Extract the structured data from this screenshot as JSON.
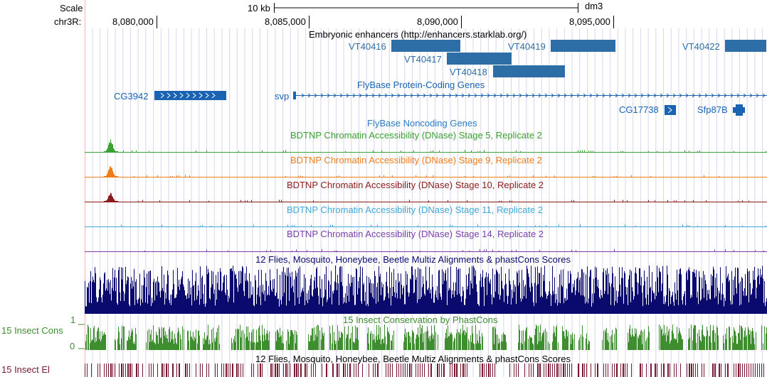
{
  "ruler": {
    "scale_label": "Scale",
    "scale_bar_text": "10 kb",
    "assembly": "dm3",
    "chrom_label": "chr3R:",
    "positions": [
      "8,080,000",
      "8,085,000",
      "8,090,000",
      "8,095,000"
    ]
  },
  "tracks": {
    "enhancers": {
      "title": "Embryonic enhancers (http://enhancers.starklab.org/)",
      "items": [
        "VT40416",
        "VT40417",
        "VT40418",
        "VT40419",
        "VT40422"
      ],
      "color": "#2e6ea6"
    },
    "genes": {
      "title": "FlyBase Protein-Coding Genes",
      "items": [
        "CG3942",
        "svp",
        "CG17738",
        "Sfp87B"
      ],
      "color": "#1a63b3"
    },
    "noncoding": {
      "title": "FlyBase Noncoding Genes"
    },
    "dnase": [
      {
        "title": "BDTNP Chromatin Accessibility (DNase) Stage 5, Replicate 2",
        "color": "#3aa132"
      },
      {
        "title": "BDTNP Chromatin Accessibility (DNase) Stage 9, Replicate 2",
        "color": "#f07d1a"
      },
      {
        "title": "BDTNP Chromatin Accessibility (DNase) Stage 10, Replicate 2",
        "color": "#8b1a1a"
      },
      {
        "title": "BDTNP Chromatin Accessibility (DNase) Stage 11, Replicate 2",
        "color": "#41a8d8"
      },
      {
        "title": "BDTNP Chromatin Accessibility (DNase) Stage 14, Replicate 2",
        "color": "#7a3fa8"
      }
    ],
    "multiz": {
      "title": "12 Flies, Mosquito, Honeybee, Beetle Multiz Alignments & phastCons Scores",
      "color": "#0a0a6e"
    },
    "phastcons": {
      "title": "15 Insect Conservation by PhastCons",
      "side_label": "15 Insect Cons",
      "axis_max": "1",
      "axis_min": "0",
      "color": "#3e8e2f"
    },
    "elements": {
      "title": "12 Flies, Mosquito, Honeybee, Beetle Multiz Alignments & phastCons Scores",
      "side_label": "15 Insect El",
      "color": "#7a1a32"
    }
  }
}
